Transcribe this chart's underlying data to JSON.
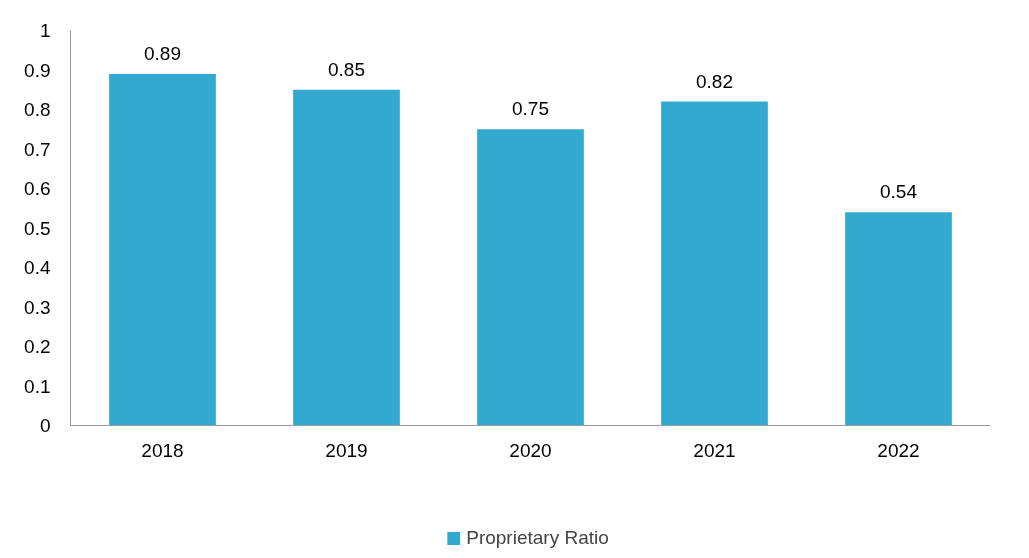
{
  "chart_data": {
    "type": "bar",
    "categories": [
      "2018",
      "2019",
      "2020",
      "2021",
      "2022"
    ],
    "series": [
      {
        "name": "Proprietary Ratio",
        "color": "#33a9cf",
        "values": [
          0.89,
          0.85,
          0.75,
          0.82,
          0.54
        ]
      }
    ],
    "ylim": [
      0,
      1
    ],
    "yticks": [
      0,
      0.1,
      0.2,
      0.3,
      0.4,
      0.5,
      0.6,
      0.7,
      0.8,
      0.9,
      1
    ],
    "data_labels": true,
    "legend": "bottom",
    "grid": false
  }
}
